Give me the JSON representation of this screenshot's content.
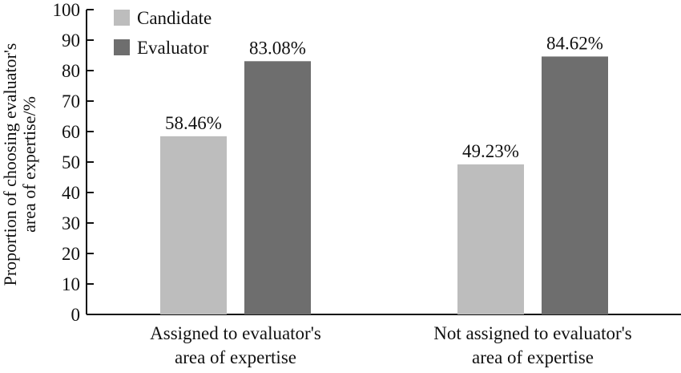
{
  "chart_data": {
    "type": "bar",
    "title": "",
    "ylabel_lines": [
      "Proportion of choosing evaluator's",
      "area of expertise/%"
    ],
    "xlabel": "",
    "categories": [
      [
        "Assigned to evaluator's",
        "area of expertise"
      ],
      [
        "Not assigned to evaluator's",
        "area of  expertise"
      ]
    ],
    "series": [
      {
        "name": "Candidate",
        "values": [
          58.46,
          49.23
        ],
        "labels": [
          "58.46%",
          "49.23%"
        ],
        "color": "#bdbdbd"
      },
      {
        "name": "Evaluator",
        "values": [
          83.08,
          84.62
        ],
        "labels": [
          "83.08%",
          "84.62%"
        ],
        "color": "#6e6e6e"
      }
    ],
    "ylim": [
      0,
      100
    ],
    "yticks": [
      0,
      10,
      20,
      30,
      40,
      50,
      60,
      70,
      80,
      90,
      100
    ],
    "grid": false,
    "legend": "top-left"
  }
}
